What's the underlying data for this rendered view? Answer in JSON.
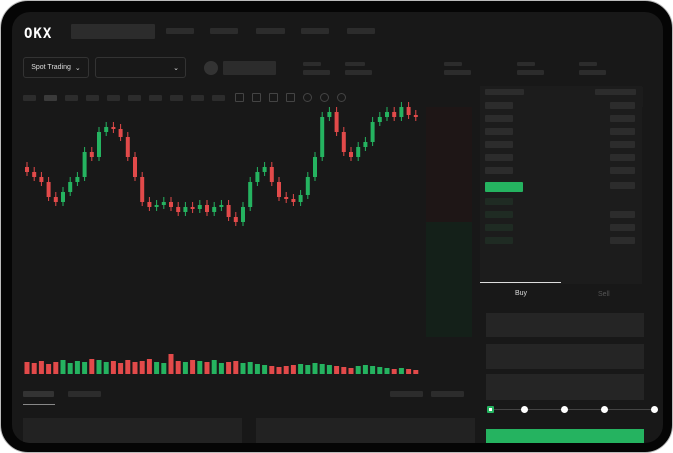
{
  "header": {
    "logo": "OKX"
  },
  "toolbar": {
    "market_select": "Spot Trading",
    "chevron": "chevron-down-icon"
  },
  "trade": {
    "tabs": [
      "Buy",
      "Sell"
    ],
    "active_tab": "Buy",
    "slider_percent": 0,
    "slider_stops": [
      0,
      25,
      50,
      75,
      100
    ]
  },
  "colors": {
    "up": "#25b360",
    "down": "#e24a4a",
    "background": "#181818"
  },
  "chart": {
    "closes": [
      95,
      90,
      85,
      70,
      65,
      75,
      85,
      90,
      115,
      110,
      135,
      140,
      138,
      130,
      110,
      90,
      65,
      60,
      62,
      65,
      60,
      55,
      60,
      58,
      62,
      55,
      60,
      62,
      50,
      45,
      60,
      85,
      95,
      100,
      85,
      70,
      68,
      65,
      72,
      90,
      110,
      150,
      155,
      135,
      115,
      110,
      120,
      125,
      145,
      150,
      155,
      150,
      160,
      152,
      150
    ],
    "volumes": [
      12,
      11,
      13,
      10,
      12,
      14,
      11,
      13,
      12,
      15,
      14,
      12,
      13,
      11,
      14,
      12,
      13,
      15,
      12,
      11,
      20,
      13,
      12,
      14,
      13,
      12,
      14,
      11,
      12,
      13,
      11,
      12,
      10,
      9,
      8,
      7,
      8,
      9,
      10,
      9,
      11,
      10,
      9,
      8,
      7,
      6,
      8,
      9,
      8,
      7,
      6,
      5,
      6,
      5,
      4
    ]
  }
}
